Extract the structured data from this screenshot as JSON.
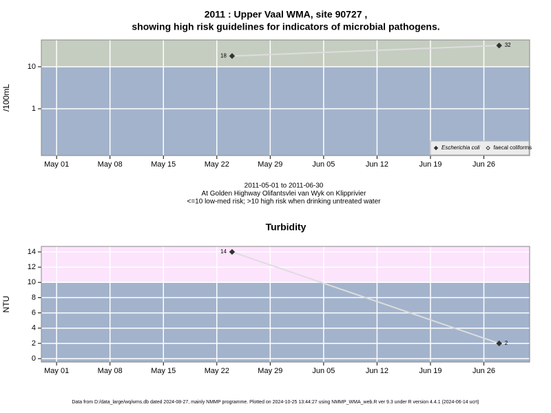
{
  "chart_data": [
    {
      "type": "line",
      "title": [
        "2011 : Upper Vaal WMA, site 90727 ,",
        "showing high risk guidelines for indicators of microbial pathogens."
      ],
      "ylabel": "/100mL",
      "log_scale": true,
      "x": [
        "2011-05-24",
        "2011-06-28"
      ],
      "series": [
        {
          "name": "Escherichia coli",
          "color": "#333333",
          "marker": "filled",
          "values": [
            18,
            32
          ]
        },
        {
          "name": "faecal coliforms",
          "color": "#333333",
          "marker": "open",
          "values": [
            null,
            null
          ]
        }
      ],
      "line_color": "#dddddd",
      "xlim": [
        "2011-04-29",
        "2011-07-02"
      ],
      "xticks": [
        {
          "value": "2011-05-01",
          "label": "May 01"
        },
        {
          "value": "2011-05-08",
          "label": "May 08"
        },
        {
          "value": "2011-05-15",
          "label": "May 15"
        },
        {
          "value": "2011-05-22",
          "label": "May 22"
        },
        {
          "value": "2011-05-29",
          "label": "May 29"
        },
        {
          "value": "2011-06-05",
          "label": "Jun 05"
        },
        {
          "value": "2011-06-12",
          "label": "Jun 12"
        },
        {
          "value": "2011-06-19",
          "label": "Jun 19"
        },
        {
          "value": "2011-06-26",
          "label": "Jun 26"
        }
      ],
      "ylim": [
        0.077,
        43.5
      ],
      "yticks": [
        1,
        10
      ],
      "threshold": 10,
      "above_color": "#c5cdc0",
      "below_color": "#a3b3cc",
      "grid": true,
      "legend": "bottom-right"
    },
    {
      "type": "line",
      "title": [
        "Turbidity"
      ],
      "ylabel": "NTU",
      "log_scale": false,
      "x": [
        "2011-05-24",
        "2011-06-28"
      ],
      "series": [
        {
          "name": "Turbidity",
          "color": "#333333",
          "marker": "filled",
          "values": [
            14,
            2
          ]
        }
      ],
      "line_color": "#dddddd",
      "xlim": [
        "2011-04-29",
        "2011-07-02"
      ],
      "xticks": [
        {
          "value": "2011-05-01",
          "label": "May 01"
        },
        {
          "value": "2011-05-08",
          "label": "May 08"
        },
        {
          "value": "2011-05-15",
          "label": "May 15"
        },
        {
          "value": "2011-05-22",
          "label": "May 22"
        },
        {
          "value": "2011-05-29",
          "label": "May 29"
        },
        {
          "value": "2011-06-05",
          "label": "Jun 05"
        },
        {
          "value": "2011-06-12",
          "label": "Jun 12"
        },
        {
          "value": "2011-06-19",
          "label": "Jun 19"
        },
        {
          "value": "2011-06-26",
          "label": "Jun 26"
        }
      ],
      "ylim": [
        -0.45,
        14.72
      ],
      "yticks": [
        0,
        2,
        4,
        6,
        8,
        10,
        12,
        14
      ],
      "threshold": 10,
      "above_color": "#fce4fc",
      "below_color": "#a3b3cc",
      "grid": true,
      "legend": "none"
    }
  ],
  "caption": [
    "2011-05-01 to 2011-06-30",
    "At Golden Highway Olifantsvlei van Wyk on Klipprivier",
    "<=10 low-med risk; >10 high risk when drinking untreated water"
  ],
  "footer": "Data from D:/data_large/wq/wms.db dated 2024-08-27, mainly NMMP programme. Plotted on 2024-10-25 13:44:27 using NMMP_WMA_web.R ver 9.3 under R version 4.4.1 (2024-06-14 ucrt)"
}
